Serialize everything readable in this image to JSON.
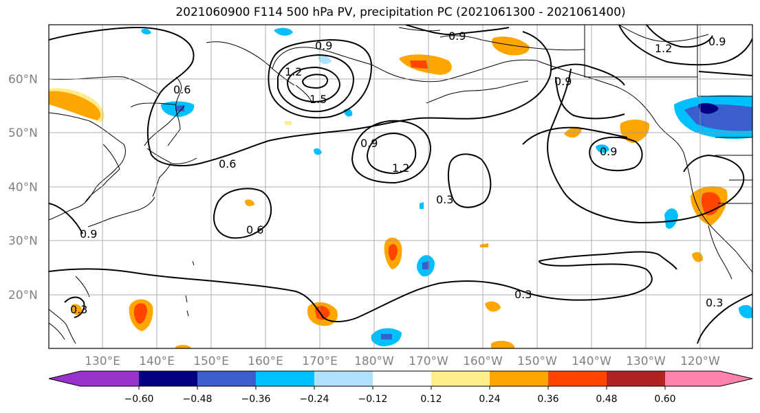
{
  "title": "2021060900 F114 500 hPa PV, precipitation PC (2021061300 - 2021061400)",
  "latitude_labels": [
    "60°N",
    "50°N",
    "40°N",
    "30°N",
    "20°N"
  ],
  "longitude_labels": [
    "130°E",
    "140°E",
    "150°E",
    "160°E",
    "170°E",
    "180°W",
    "170°W",
    "160°W",
    "150°W",
    "140°W",
    "130°W",
    "120°W"
  ],
  "colorbar": {
    "tick_labels": [
      "−0.60",
      "−0.48",
      "−0.36",
      "−0.24",
      "−0.12",
      "0.12",
      "0.24",
      "0.36",
      "0.48",
      "0.60"
    ],
    "colors": [
      "#9932cc",
      "#000080",
      "#3a5fcd",
      "#00bfff",
      "#b0e2ff",
      "#ffffff",
      "#ffec8b",
      "#ffa500",
      "#ff4500",
      "#b22222",
      "#ff82ab"
    ]
  },
  "contour_labels": [
    "0.9",
    "0.9",
    "1.2",
    "0.9",
    "0.6",
    "1.5",
    "1.2",
    "0.9",
    "0.9",
    "1.2",
    "0.6",
    "0.9",
    "0.3",
    "0.6",
    "0.9",
    "0.3",
    "0.3",
    "0.3"
  ],
  "colors": {
    "contour": "#000000",
    "coast": "#000000",
    "grid": "#999999"
  }
}
